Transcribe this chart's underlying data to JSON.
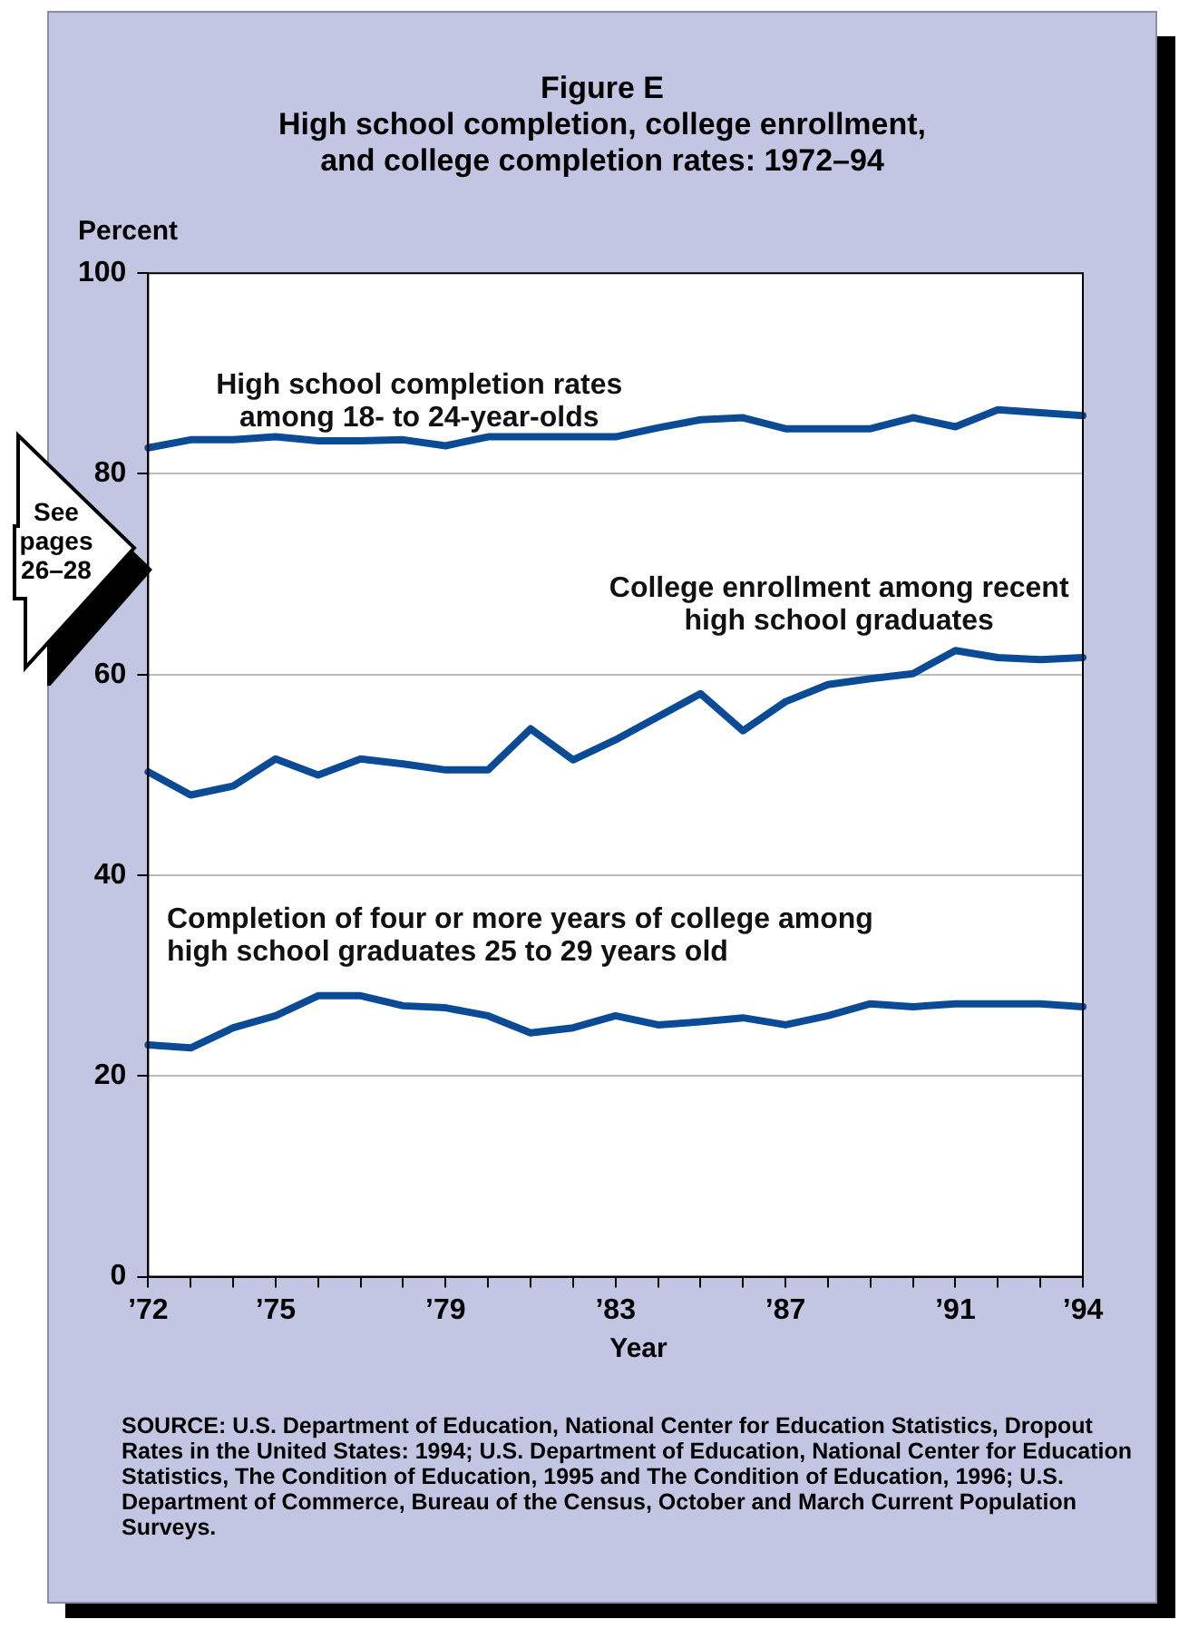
{
  "chart_data": {
    "type": "line",
    "title": "Figure E",
    "subtitle": "High school completion, college enrollment, and college completion rates: 1972–94",
    "xlabel": "Year",
    "ylabel": "Percent",
    "x": [
      1972,
      1973,
      1974,
      1975,
      1976,
      1977,
      1978,
      1979,
      1980,
      1981,
      1982,
      1983,
      1984,
      1985,
      1986,
      1987,
      1988,
      1989,
      1990,
      1991,
      1992,
      1993,
      1994
    ],
    "series": [
      {
        "name": "High school completion rates among 18- to 24-year-olds",
        "color": "#0b4a94",
        "values": [
          82.6,
          83.4,
          83.4,
          83.7,
          83.3,
          83.3,
          83.4,
          82.8,
          83.7,
          83.7,
          83.7,
          83.7,
          84.6,
          85.4,
          85.6,
          84.5,
          84.5,
          84.5,
          85.6,
          84.7,
          86.4,
          86.1,
          85.8
        ]
      },
      {
        "name": "College enrollment among recent high school graduates",
        "color": "#0b4a94",
        "values": [
          50.3,
          48.0,
          48.9,
          51.6,
          50.0,
          51.6,
          51.1,
          50.5,
          50.5,
          54.6,
          51.5,
          53.5,
          55.8,
          58.1,
          54.4,
          57.3,
          59.0,
          59.6,
          60.1,
          62.4,
          61.7,
          61.5,
          61.7
        ]
      },
      {
        "name": "Completion of four or more years of college among high school graduates 25 to 29 years old",
        "color": "#0b4a94",
        "values": [
          23.1,
          22.8,
          24.8,
          26.0,
          28.0,
          28.0,
          27.0,
          26.8,
          26.0,
          24.3,
          24.8,
          26.0,
          25.1,
          25.4,
          25.8,
          25.1,
          26.0,
          27.2,
          26.9,
          27.2,
          27.2,
          27.2,
          26.9
        ]
      }
    ],
    "xlim": [
      1972,
      1994
    ],
    "xticks": [
      {
        "value": 1972,
        "label": "’72"
      },
      {
        "value": 1973,
        "label": null
      },
      {
        "value": 1974,
        "label": null
      },
      {
        "value": 1975,
        "label": "’75"
      },
      {
        "value": 1976,
        "label": null
      },
      {
        "value": 1977,
        "label": null
      },
      {
        "value": 1978,
        "label": null
      },
      {
        "value": 1979,
        "label": "’79"
      },
      {
        "value": 1980,
        "label": null
      },
      {
        "value": 1981,
        "label": null
      },
      {
        "value": 1982,
        "label": null
      },
      {
        "value": 1983,
        "label": "’83"
      },
      {
        "value": 1984,
        "label": null
      },
      {
        "value": 1985,
        "label": null
      },
      {
        "value": 1986,
        "label": null
      },
      {
        "value": 1987,
        "label": "’87"
      },
      {
        "value": 1988,
        "label": null
      },
      {
        "value": 1989,
        "label": null
      },
      {
        "value": 1990,
        "label": null
      },
      {
        "value": 1991,
        "label": "’91"
      },
      {
        "value": 1992,
        "label": null
      },
      {
        "value": 1993,
        "label": null
      },
      {
        "value": 1994,
        "label": "’94"
      }
    ],
    "ylim": [
      0,
      100
    ],
    "yticks": [
      0,
      20,
      40,
      60,
      80,
      100
    ],
    "grid": "y",
    "legend": false,
    "marker": "none",
    "line_style": "solid",
    "annotations": [
      "See pages 26–28",
      "SOURCE: U.S. Department of Education, National Center for Education Statistics, Dropout Rates in the United States: 1994; U.S. Department of Education, National Center for Education Statistics, The Condition of Education, 1995 and The Condition of Education, 1996; U.S. Department of Commerce, Bureau of the Census, October and March Current Population Surveys."
    ]
  }
}
